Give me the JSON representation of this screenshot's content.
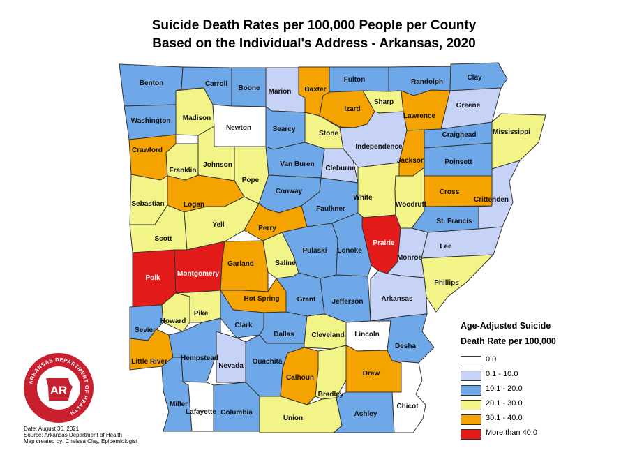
{
  "title_line1": "Suicide Death Rates per 100,000 People per County",
  "title_line2": "Based on the Individual's Address - Arkansas, 2020",
  "legend": {
    "title_line1": "Age-Adjusted Suicide",
    "title_line2": "Death Rate per 100,000",
    "items": [
      {
        "label": "0.0",
        "color": "#ffffff"
      },
      {
        "label": "0.1 - 10.0",
        "color": "#c6d3f7"
      },
      {
        "label": "10.1 - 20.0",
        "color": "#6fa8e8"
      },
      {
        "label": "20.1 - 30.0",
        "color": "#f2f488"
      },
      {
        "label": "30.1 - 40.0",
        "color": "#f5a300"
      },
      {
        "label": "More than 40.0",
        "color": "#e31a1a"
      }
    ]
  },
  "footnotes": [
    "Date: August 30, 2021",
    "Source: Arkansas Department of Health",
    "Map created by: Chelsea Clay, Epidemiologist"
  ],
  "logo": {
    "ring_text": "ARKANSAS DEPARTMENT OF HEALTH",
    "center_text": "AR",
    "color": "#c8202f"
  },
  "counties": [
    {
      "name": "Benton",
      "category": "10.1 - 20.0"
    },
    {
      "name": "Carroll",
      "category": "10.1 - 20.0"
    },
    {
      "name": "Boone",
      "category": "10.1 - 20.0"
    },
    {
      "name": "Marion",
      "category": "0.1 - 10.0"
    },
    {
      "name": "Baxter",
      "category": "30.1 - 40.0"
    },
    {
      "name": "Fulton",
      "category": "10.1 - 20.0"
    },
    {
      "name": "Randolph",
      "category": "10.1 - 20.0"
    },
    {
      "name": "Clay",
      "category": "10.1 - 20.0"
    },
    {
      "name": "Washington",
      "category": "10.1 - 20.0"
    },
    {
      "name": "Madison",
      "category": "20.1 - 30.0"
    },
    {
      "name": "Newton",
      "category": "0.0"
    },
    {
      "name": "Searcy",
      "category": "10.1 - 20.0"
    },
    {
      "name": "Stone",
      "category": "20.1 - 30.0"
    },
    {
      "name": "Izard",
      "category": "30.1 - 40.0"
    },
    {
      "name": "Sharp",
      "category": "20.1 - 30.0"
    },
    {
      "name": "Lawrence",
      "category": "30.1 - 40.0"
    },
    {
      "name": "Greene",
      "category": "0.1 - 10.0"
    },
    {
      "name": "Crawford",
      "category": "30.1 - 40.0"
    },
    {
      "name": "Franklin",
      "category": "20.1 - 30.0"
    },
    {
      "name": "Johnson",
      "category": "20.1 - 30.0"
    },
    {
      "name": "Pope",
      "category": "20.1 - 30.0"
    },
    {
      "name": "Van Buren",
      "category": "10.1 - 20.0"
    },
    {
      "name": "Cleburne",
      "category": "0.1 - 10.0"
    },
    {
      "name": "Independence",
      "category": "0.1 - 10.0"
    },
    {
      "name": "Jackson",
      "category": "30.1 - 40.0"
    },
    {
      "name": "Craighead",
      "category": "10.1 - 20.0"
    },
    {
      "name": "Mississippi",
      "category": "20.1 - 30.0"
    },
    {
      "name": "Poinsett",
      "category": "10.1 - 20.0"
    },
    {
      "name": "Sebastian",
      "category": "20.1 - 30.0"
    },
    {
      "name": "Logan",
      "category": "30.1 - 40.0"
    },
    {
      "name": "Conway",
      "category": "10.1 - 20.0"
    },
    {
      "name": "Faulkner",
      "category": "10.1 - 20.0"
    },
    {
      "name": "White",
      "category": "20.1 - 30.0"
    },
    {
      "name": "Woodruff",
      "category": "20.1 - 30.0"
    },
    {
      "name": "Cross",
      "category": "30.1 - 40.0"
    },
    {
      "name": "Crittenden",
      "category": "0.1 - 10.0"
    },
    {
      "name": "Scott",
      "category": "20.1 - 30.0"
    },
    {
      "name": "Yell",
      "category": "20.1 - 30.0"
    },
    {
      "name": "Perry",
      "category": "30.1 - 40.0"
    },
    {
      "name": "Pulaski",
      "category": "10.1 - 20.0"
    },
    {
      "name": "Lonoke",
      "category": "10.1 - 20.0"
    },
    {
      "name": "Prairie",
      "category": "More than 40.0"
    },
    {
      "name": "St. Francis",
      "category": "10.1 - 20.0"
    },
    {
      "name": "Lee",
      "category": "0.1 - 10.0"
    },
    {
      "name": "Monroe",
      "category": "0.1 - 10.0"
    },
    {
      "name": "Polk",
      "category": "More than 40.0"
    },
    {
      "name": "Montgomery",
      "category": "More than 40.0"
    },
    {
      "name": "Garland",
      "category": "30.1 - 40.0"
    },
    {
      "name": "Saline",
      "category": "20.1 - 30.0"
    },
    {
      "name": "Phillips",
      "category": "20.1 - 30.0"
    },
    {
      "name": "Hot Spring",
      "category": "30.1 - 40.0"
    },
    {
      "name": "Grant",
      "category": "10.1 - 20.0"
    },
    {
      "name": "Jefferson",
      "category": "10.1 - 20.0"
    },
    {
      "name": "Arkansas",
      "category": "0.1 - 10.0"
    },
    {
      "name": "Sevier",
      "category": "10.1 - 20.0"
    },
    {
      "name": "Howard",
      "category": "20.1 - 30.0"
    },
    {
      "name": "Pike",
      "category": "20.1 - 30.0"
    },
    {
      "name": "Clark",
      "category": "10.1 - 20.0"
    },
    {
      "name": "Dallas",
      "category": "10.1 - 20.0"
    },
    {
      "name": "Cleveland",
      "category": "20.1 - 30.0"
    },
    {
      "name": "Lincoln",
      "category": "0.0"
    },
    {
      "name": "Desha",
      "category": "10.1 - 20.0"
    },
    {
      "name": "Little River",
      "category": "30.1 - 40.0"
    },
    {
      "name": "Hempstead",
      "category": "10.1 - 20.0"
    },
    {
      "name": "Nevada",
      "category": "0.1 - 10.0"
    },
    {
      "name": "Ouachita",
      "category": "10.1 - 20.0"
    },
    {
      "name": "Calhoun",
      "category": "30.1 - 40.0"
    },
    {
      "name": "Bradley",
      "category": "20.1 - 30.0"
    },
    {
      "name": "Drew",
      "category": "30.1 - 40.0"
    },
    {
      "name": "Miller",
      "category": "10.1 - 20.0"
    },
    {
      "name": "Lafayette",
      "category": "0.0"
    },
    {
      "name": "Columbia",
      "category": "10.1 - 20.0"
    },
    {
      "name": "Union",
      "category": "20.1 - 30.0"
    },
    {
      "name": "Ashley",
      "category": "10.1 - 20.0"
    },
    {
      "name": "Chicot",
      "category": "0.0"
    }
  ]
}
